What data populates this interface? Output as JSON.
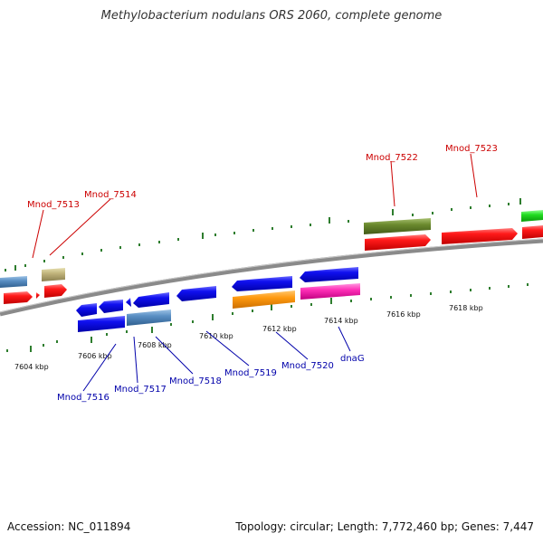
{
  "title": "Methylobacterium nodulans ORS 2060, complete genome",
  "footer": {
    "accession": "Accession: NC_011894",
    "info": "Topology: circular; Length: 7,772,460 bp; Genes: 7,447"
  },
  "colors": {
    "forward_label": "#cc0000",
    "reverse_label": "#0000aa",
    "backbone": "#888888",
    "tick": "#2e7d2e"
  },
  "kbp_labels": [
    "7604 kbp",
    "7606 kbp",
    "7608 kbp",
    "7610 kbp",
    "7612 kbp",
    "7614 kbp",
    "7616 kbp",
    "7618 kbp"
  ],
  "forward_gene_labels": [
    "Mnod_7513",
    "Mnod_7514",
    "Mnod_7522",
    "Mnod_7523"
  ],
  "reverse_gene_labels": [
    "Mnod_7516",
    "Mnod_7517",
    "Mnod_7518",
    "Mnod_7519",
    "Mnod_7520",
    "dnaG"
  ]
}
